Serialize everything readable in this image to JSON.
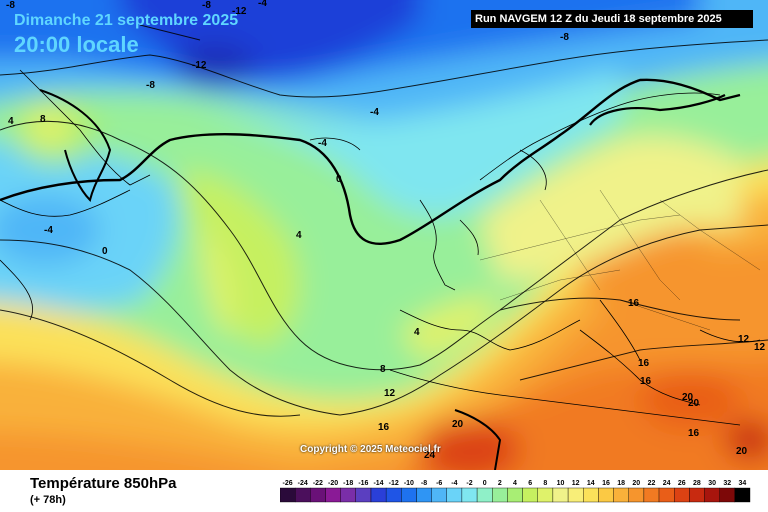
{
  "header": {
    "date": "Dimanche 21 septembre 2025",
    "time": "20:00 locale",
    "run": "Run NAVGEM 12 Z du Jeudi 18 septembre 2025"
  },
  "footer": {
    "parameter": "Température 850hPa",
    "lead": "(+ 78h)"
  },
  "copyright": "Copyright © 2025 Meteociel.fr",
  "contour_labels": [
    "-8",
    "-12",
    "-4",
    "-8",
    "-12",
    "-8",
    "-8",
    "-4",
    "-4",
    "8",
    "4",
    "-4",
    "0",
    "0",
    "4",
    "4",
    "8",
    "12",
    "16",
    "16",
    "16",
    "12",
    "12",
    "16",
    "20",
    "20",
    "20",
    "16",
    "24",
    "20"
  ],
  "scale": {
    "values": [
      "-26",
      "-24",
      "-22",
      "-20",
      "-18",
      "-16",
      "-14",
      "-12",
      "-10",
      "-8",
      "-6",
      "-4",
      "-2",
      "0",
      "2",
      "4",
      "6",
      "8",
      "10",
      "12",
      "14",
      "16",
      "18",
      "20",
      "22",
      "24",
      "26",
      "28",
      "30",
      "32",
      "34"
    ],
    "colors": [
      "#2a0a3a",
      "#4b0f5c",
      "#6a1178",
      "#8a1a96",
      "#7a2ea8",
      "#5b3fc0",
      "#2a3fd8",
      "#1f55e6",
      "#1e72ef",
      "#2f95f4",
      "#4fb6f7",
      "#6ad3f8",
      "#7fe6f0",
      "#8ff0c8",
      "#98ef9a",
      "#a8ee74",
      "#c6f060",
      "#dff26a",
      "#f0f28a",
      "#f8ee78",
      "#fbe15a",
      "#fbc944",
      "#f9b13a",
      "#f6952d",
      "#f17a22",
      "#e95e18",
      "#dc4213",
      "#c82a10",
      "#a8150d",
      "#7d0808",
      "#000000"
    ]
  }
}
